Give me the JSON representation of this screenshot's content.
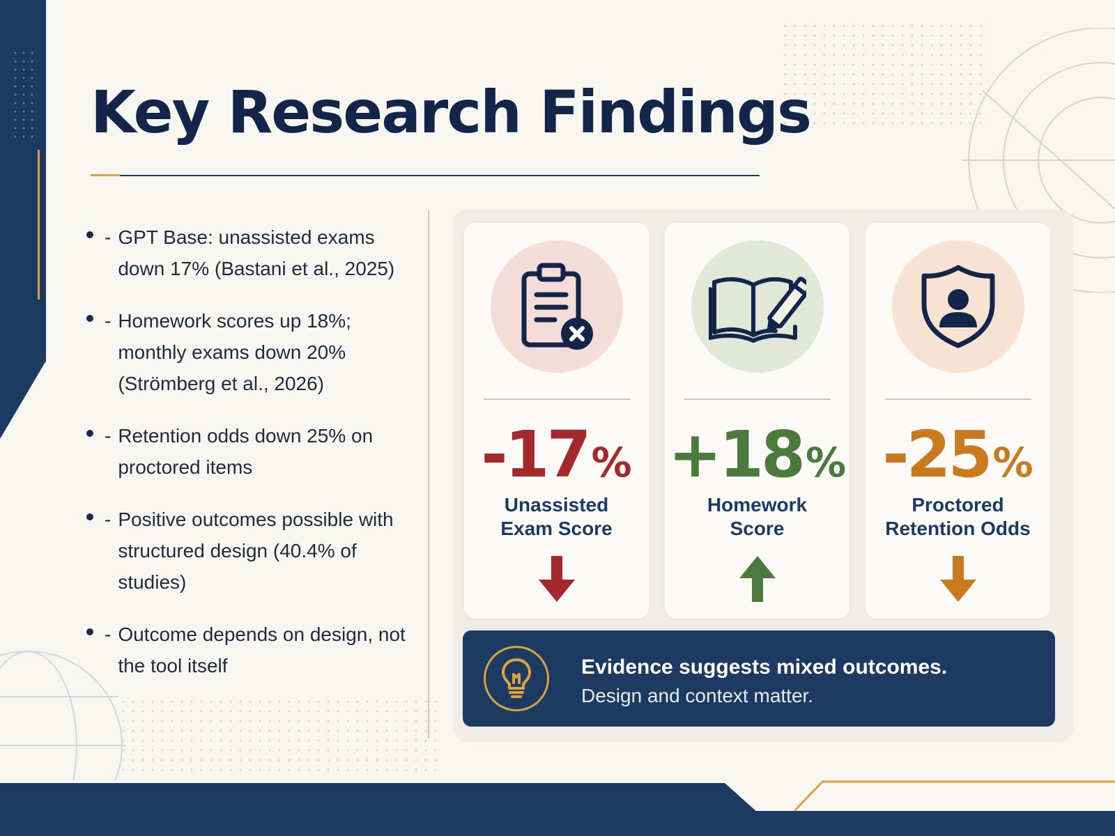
{
  "title": "Key Research Findings",
  "colors": {
    "navy": "#1d3a63",
    "gold": "#d9a441",
    "negative_red": "#a4292c",
    "positive_green": "#4b7a3c",
    "warning_orange": "#c97a1e",
    "background": "#f8f6f1"
  },
  "bullets": [
    {
      "dash": "-",
      "text": "GPT Base: unassisted exams\ndown 17% (Bastani et al., 2025)"
    },
    {
      "dash": "-",
      "text": "Homework scores up 18%;\nmonthly exams down 20%\n(Strömberg et al., 2026)"
    },
    {
      "dash": "-",
      "text": "Retention odds down 25% on\nproctored items"
    },
    {
      "dash": "-",
      "text": "Positive outcomes possible with\nstructured design (40.4% of studies)"
    },
    {
      "dash": "-",
      "text": "Outcome depends on design, not\nthe tool itself"
    }
  ],
  "cards": [
    {
      "icon": "clipboard-x-icon",
      "value": "-17",
      "unit": "%",
      "label": "Unassisted\nExam Score",
      "direction": "down",
      "color": "#a4292c"
    },
    {
      "icon": "book-pencil-icon",
      "value": "+18",
      "unit": "%",
      "label": "Homework\nScore",
      "direction": "up",
      "color": "#4b7a3c"
    },
    {
      "icon": "shield-person-icon",
      "value": "-25",
      "unit": "%",
      "label": "Proctored\nRetention Odds",
      "direction": "down",
      "color": "#c97a1e"
    }
  ],
  "callout": {
    "icon": "lightbulb-icon",
    "headline": "Evidence suggests mixed outcomes.",
    "subtext": "Design and context matter."
  }
}
